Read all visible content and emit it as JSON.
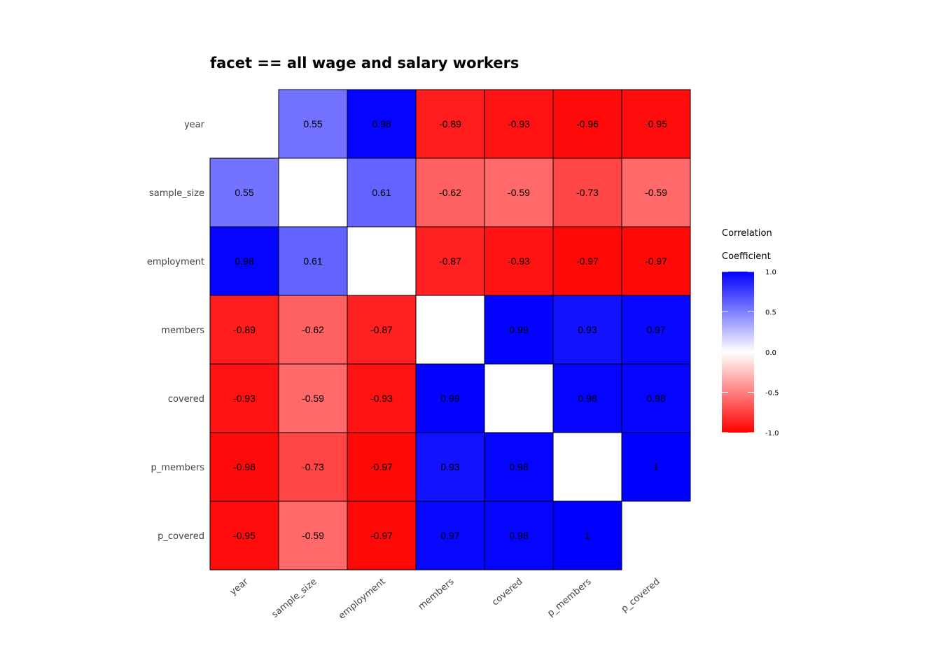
{
  "chart_data": {
    "type": "heatmap",
    "title": "facet == all wage and salary workers",
    "variables": [
      "year",
      "sample_size",
      "employment",
      "members",
      "covered",
      "p_members",
      "p_covered"
    ],
    "matrix": [
      [
        null,
        0.55,
        0.98,
        -0.89,
        -0.93,
        -0.96,
        -0.95
      ],
      [
        0.55,
        null,
        0.61,
        -0.62,
        -0.59,
        -0.73,
        -0.59
      ],
      [
        0.98,
        0.61,
        null,
        -0.87,
        -0.93,
        -0.97,
        -0.97
      ],
      [
        -0.89,
        -0.62,
        -0.87,
        null,
        0.99,
        0.93,
        0.97
      ],
      [
        -0.93,
        -0.59,
        -0.93,
        0.99,
        null,
        0.98,
        0.98
      ],
      [
        -0.96,
        -0.73,
        -0.97,
        0.93,
        0.98,
        null,
        1
      ],
      [
        -0.95,
        -0.59,
        -0.97,
        0.97,
        0.98,
        1,
        null
      ]
    ],
    "labels": [
      [
        "",
        "0.55",
        "0.98",
        "-0.89",
        "-0.93",
        "-0.96",
        "-0.95"
      ],
      [
        "0.55",
        "",
        "0.61",
        "-0.62",
        "-0.59",
        "-0.73",
        "-0.59"
      ],
      [
        "0.98",
        "0.61",
        "",
        "-0.87",
        "-0.93",
        "-0.97",
        "-0.97"
      ],
      [
        "-0.89",
        "-0.62",
        "-0.87",
        "",
        "0.99",
        "0.93",
        "0.97"
      ],
      [
        "-0.93",
        "-0.59",
        "-0.93",
        "0.99",
        "",
        "0.98",
        "0.98"
      ],
      [
        "-0.96",
        "-0.73",
        "-0.97",
        "0.93",
        "0.98",
        "",
        "1"
      ],
      [
        "-0.95",
        "-0.59",
        "-0.97",
        "0.97",
        "0.98",
        "1",
        ""
      ]
    ],
    "color_scale": {
      "low": "#ff0000",
      "mid": "#ffffff",
      "high": "#0000ff",
      "limits": [
        -1,
        1
      ]
    },
    "legend": {
      "title_line1": "Correlation",
      "title_line2": "Coefficient",
      "ticks": [
        1.0,
        0.5,
        0.0,
        -0.5,
        -1.0
      ],
      "tick_labels": [
        "1.0",
        "0.5",
        "0.0",
        "-0.5",
        "-1.0"
      ],
      "placement": "right"
    },
    "grid": false
  }
}
